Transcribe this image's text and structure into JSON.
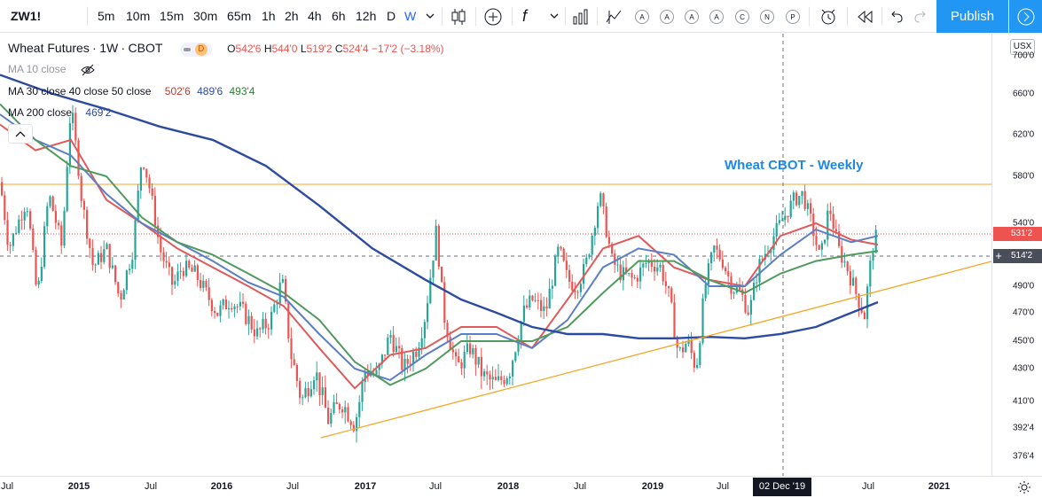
{
  "toolbar": {
    "symbol": "ZW1!",
    "intervals": [
      "5m",
      "10m",
      "15m",
      "30m",
      "65m",
      "1h",
      "2h",
      "4h",
      "6h",
      "12h",
      "D",
      "W"
    ],
    "active_interval": "W",
    "fx_label": "f",
    "alert_letters": [
      "A",
      "A",
      "A",
      "A",
      "C",
      "N",
      "P"
    ],
    "publish_label": "Publish"
  },
  "legend": {
    "main": {
      "name": "Wheat Futures",
      "sep1": "·",
      "interval": "1W",
      "sep2": "·",
      "exchange": "CBOT",
      "badge": "D",
      "open_label": "O",
      "open": "542'6",
      "high_label": "H",
      "high": "544'0",
      "low_label": "L",
      "low": "519'2",
      "close_label": "C",
      "close": "524'4",
      "change": "−17'2 (−3.18%)"
    },
    "ma10": {
      "label": "MA 10 close"
    },
    "ma_multi": {
      "label": "MA 30 close 40 close 50 close",
      "v30": "502'6",
      "v40": "489'6",
      "v50": "493'4"
    },
    "ma200": {
      "label": "MA 200 close",
      "v200": "469'2"
    }
  },
  "annotation": {
    "text": "Wheat CBOT - Weekly"
  },
  "yaxis": {
    "currency": "USX",
    "labels": [
      "700'0",
      "660'0",
      "620'0",
      "580'0",
      "540'0",
      "490'0",
      "470'0",
      "450'0",
      "430'0",
      "410'0",
      "392'4",
      "376'4"
    ],
    "price_tag": "531'2",
    "crosshair_tag": "514'2"
  },
  "xaxis": {
    "labels": [
      "Jul",
      "2015",
      "Jul",
      "2016",
      "Jul",
      "2017",
      "Jul",
      "2018",
      "Jul",
      "2019",
      "Jul",
      "Jul",
      "2021"
    ],
    "crosshair_date": "02 Dec '19"
  },
  "colors": {
    "up": "#26a69a",
    "down": "#ef5350",
    "ma30": "#e05a5a",
    "ma40": "#5a7fc6",
    "ma50": "#4f9a5c",
    "ma200": "#2d4ba0",
    "trend": "#f5a623",
    "accent": "#2196f3"
  },
  "chart_data": {
    "type": "candlestick",
    "title": "Wheat CBOT - Weekly",
    "ylabel": "USX",
    "ylim": [
      370,
      705
    ],
    "x": [
      "2014-07",
      "2015-01",
      "2015-07",
      "2016-01",
      "2016-07",
      "2017-01",
      "2017-07",
      "2018-01",
      "2018-07",
      "2019-01",
      "2019-07",
      "2019-12",
      "2020-07",
      "2021-01"
    ],
    "series": [
      {
        "name": "Wheat Futures",
        "values": [
          530,
          600,
          585,
          480,
          415,
          420,
          560,
          430,
          560,
          510,
          440,
          560,
          525,
          null
        ]
      },
      {
        "name": "MA 30",
        "values": [
          600,
          590,
          560,
          500,
          430,
          440,
          480,
          450,
          520,
          505,
          460,
          520,
          503,
          null
        ]
      },
      {
        "name": "MA 40",
        "values": [
          600,
          590,
          560,
          505,
          435,
          435,
          470,
          450,
          510,
          510,
          470,
          505,
          490,
          null
        ]
      },
      {
        "name": "MA 50",
        "values": [
          600,
          590,
          560,
          510,
          440,
          430,
          460,
          455,
          500,
          510,
          475,
          500,
          493,
          null
        ]
      },
      {
        "name": "MA 200",
        "values": [
          645,
          630,
          605,
          580,
          545,
          515,
          490,
          480,
          475,
          470,
          468,
          470,
          469,
          null
        ]
      }
    ],
    "horizontal_lines": [
      {
        "value": 574,
        "color": "#f5a623"
      },
      {
        "value": 531.25,
        "color": "#ef5350",
        "style": "dotted"
      }
    ],
    "trendlines": [
      {
        "from": [
          "2016-08",
          387
        ],
        "to": [
          "2020-10",
          502
        ]
      }
    ]
  }
}
